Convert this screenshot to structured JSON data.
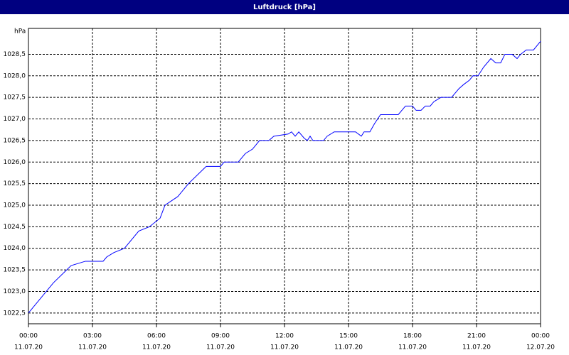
{
  "chart_data": {
    "type": "line",
    "title": "Luftdruck [hPa]",
    "y_unit": "hPa",
    "series": [
      {
        "name": "Luftdruck",
        "color": "#0000ff",
        "x": [
          0,
          1.17,
          2.0,
          2.67,
          3.5,
          3.67,
          4.0,
          4.5,
          5.17,
          5.67,
          6.17,
          6.4,
          7.0,
          7.5,
          8.33,
          9.0,
          9.17,
          9.83,
          10.17,
          10.5,
          10.83,
          11.27,
          11.5,
          12.17,
          12.33,
          12.5,
          12.67,
          12.93,
          13.07,
          13.2,
          13.33,
          13.83,
          14.0,
          14.33,
          15.33,
          15.6,
          15.73,
          16.0,
          16.23,
          16.5,
          17.33,
          17.67,
          18.0,
          18.17,
          18.4,
          18.6,
          18.83,
          19.0,
          19.33,
          19.83,
          20.17,
          20.4,
          20.67,
          20.83,
          21.07,
          21.33,
          21.67,
          21.9,
          22.13,
          22.33,
          22.67,
          22.9,
          23.07,
          23.33,
          23.67,
          24.0
        ],
        "values": [
          1022.5,
          1023.2,
          1023.6,
          1023.7,
          1023.7,
          1023.8,
          1023.9,
          1024.0,
          1024.4,
          1024.5,
          1024.7,
          1025.0,
          1025.2,
          1025.5,
          1025.9,
          1025.9,
          1026.0,
          1026.0,
          1026.2,
          1026.3,
          1026.5,
          1026.5,
          1026.6,
          1026.65,
          1026.7,
          1026.6,
          1026.7,
          1026.55,
          1026.5,
          1026.6,
          1026.5,
          1026.5,
          1026.6,
          1026.7,
          1026.7,
          1026.6,
          1026.7,
          1026.7,
          1026.9,
          1027.1,
          1027.1,
          1027.3,
          1027.3,
          1027.2,
          1027.2,
          1027.3,
          1027.3,
          1027.4,
          1027.5,
          1027.5,
          1027.7,
          1027.8,
          1027.9,
          1028.0,
          1028.0,
          1028.2,
          1028.4,
          1028.3,
          1028.3,
          1028.5,
          1028.5,
          1028.4,
          1028.5,
          1028.6,
          1028.6,
          1028.8
        ]
      }
    ],
    "xlim": [
      0,
      24
    ],
    "xticks": [
      {
        "value": 0,
        "label": "00:00",
        "date": "11.07.20"
      },
      {
        "value": 3,
        "label": "03:00",
        "date": "11.07.20"
      },
      {
        "value": 6,
        "label": "06:00",
        "date": "11.07.20"
      },
      {
        "value": 9,
        "label": "09:00",
        "date": "11.07.20"
      },
      {
        "value": 12,
        "label": "12:00",
        "date": "11.07.20"
      },
      {
        "value": 15,
        "label": "15:00",
        "date": "11.07.20"
      },
      {
        "value": 18,
        "label": "18:00",
        "date": "11.07.20"
      },
      {
        "value": 21,
        "label": "21:00",
        "date": "11.07.20"
      },
      {
        "value": 24,
        "label": "00:00",
        "date": "12.07.20"
      }
    ],
    "ylim": [
      1022.25,
      1029.1
    ],
    "yticks": [
      {
        "value": 1022.5,
        "label": "1022,5"
      },
      {
        "value": 1023,
        "label": "1023,0"
      },
      {
        "value": 1023.5,
        "label": "1023,5"
      },
      {
        "value": 1024,
        "label": "1024,0"
      },
      {
        "value": 1024.5,
        "label": "1024,5"
      },
      {
        "value": 1025,
        "label": "1025,0"
      },
      {
        "value": 1025.5,
        "label": "1025,5"
      },
      {
        "value": 1026,
        "label": "1026,0"
      },
      {
        "value": 1026.5,
        "label": "1026,5"
      },
      {
        "value": 1027,
        "label": "1027,0"
      },
      {
        "value": 1027.5,
        "label": "1027,5"
      },
      {
        "value": 1028,
        "label": "1028,0"
      },
      {
        "value": 1028.5,
        "label": "1028,5"
      }
    ],
    "grid": true
  }
}
